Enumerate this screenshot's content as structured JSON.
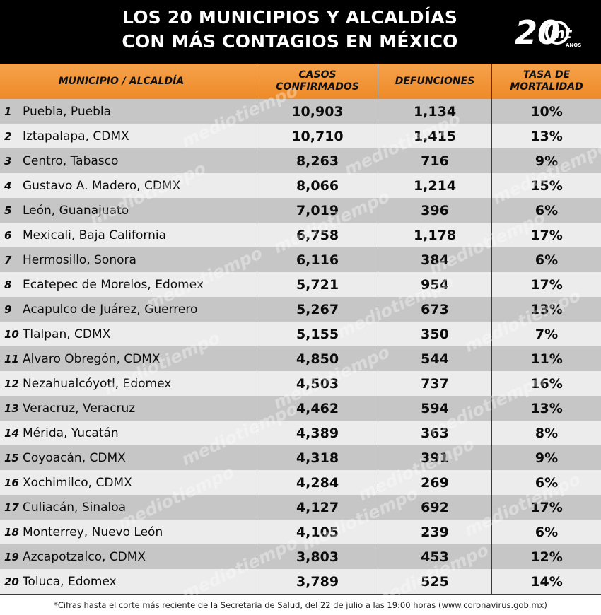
{
  "title": {
    "line1": "LOS 20 MUNICIPIOS Y ALCALDÍAS",
    "line2": "CON MÁS CONTAGIOS EN MÉXICO"
  },
  "logo": {
    "number": "20",
    "letters": "mt",
    "sub": "AÑOS"
  },
  "columns": {
    "municipio": "MUNICIPIO / ALCALDÍA",
    "casos_1": "CASOS",
    "casos_2": "CONFIRMADOS",
    "defunciones": "DEFUNCIONES",
    "tasa_1": "TASA DE",
    "tasa_2": "MORTALIDAD"
  },
  "rows": [
    {
      "rank": "1",
      "name": "Puebla, Puebla",
      "casos": "10,903",
      "defunciones": "1,134",
      "tasa": "10%"
    },
    {
      "rank": "2",
      "name": "Iztapalapa, CDMX",
      "casos": "10,710",
      "defunciones": "1,415",
      "tasa": "13%"
    },
    {
      "rank": "3",
      "name": "Centro, Tabasco",
      "casos": "8,263",
      "defunciones": "716",
      "tasa": "9%"
    },
    {
      "rank": "4",
      "name": "Gustavo A. Madero, CDMX",
      "casos": "8,066",
      "defunciones": "1,214",
      "tasa": "15%"
    },
    {
      "rank": "5",
      "name": "León, Guanajuato",
      "casos": "7,019",
      "defunciones": "396",
      "tasa": "6%"
    },
    {
      "rank": "6",
      "name": "Mexicali, Baja California",
      "casos": "6,758",
      "defunciones": "1,178",
      "tasa": "17%"
    },
    {
      "rank": "7",
      "name": "Hermosillo, Sonora",
      "casos": "6,116",
      "defunciones": "384",
      "tasa": "6%"
    },
    {
      "rank": "8",
      "name": "Ecatepec de Morelos, Edomex",
      "casos": "5,721",
      "defunciones": "954",
      "tasa": "17%"
    },
    {
      "rank": "9",
      "name": "Acapulco de Juárez, Guerrero",
      "casos": "5,267",
      "defunciones": "673",
      "tasa": "13%"
    },
    {
      "rank": "10",
      "name": "Tlalpan, CDMX",
      "casos": "5,155",
      "defunciones": "350",
      "tasa": "7%"
    },
    {
      "rank": "11",
      "name": "Alvaro Obregón, CDMX",
      "casos": "4,850",
      "defunciones": "544",
      "tasa": "11%"
    },
    {
      "rank": "12",
      "name": "Nezahualcóyotl, Edomex",
      "casos": "4,503",
      "defunciones": "737",
      "tasa": "16%"
    },
    {
      "rank": "13",
      "name": "Veracruz, Veracruz",
      "casos": "4,462",
      "defunciones": "594",
      "tasa": "13%"
    },
    {
      "rank": "14",
      "name": "Mérida, Yucatán",
      "casos": "4,389",
      "defunciones": "363",
      "tasa": "8%"
    },
    {
      "rank": "15",
      "name": "Coyoacán, CDMX",
      "casos": "4,318",
      "defunciones": "391",
      "tasa": "9%"
    },
    {
      "rank": "16",
      "name": "Xochimilco, CDMX",
      "casos": "4,284",
      "defunciones": "269",
      "tasa": "6%"
    },
    {
      "rank": "17",
      "name": "Culiacán, Sinaloa",
      "casos": "4,127",
      "defunciones": "692",
      "tasa": "17%"
    },
    {
      "rank": "18",
      "name": "Monterrey, Nuevo León",
      "casos": "4,105",
      "defunciones": "239",
      "tasa": "6%"
    },
    {
      "rank": "19",
      "name": "Azcapotzalco, CDMX",
      "casos": "3,803",
      "defunciones": "453",
      "tasa": "12%"
    },
    {
      "rank": "20",
      "name": "Toluca, Edomex",
      "casos": "3,789",
      "defunciones": "525",
      "tasa": "14%"
    }
  ],
  "footer": "*Cifras hasta el corte más reciente de la Secretaría de Salud, del 22 de julio a las 19:00 horas (www.coronavirus.gob.mx)",
  "watermark": "mediotiempo",
  "colors": {
    "header_bg": "#000000",
    "column_header_orange": "#ee8a27",
    "row_dark": "#c6c6c6",
    "row_light": "#ececec"
  }
}
